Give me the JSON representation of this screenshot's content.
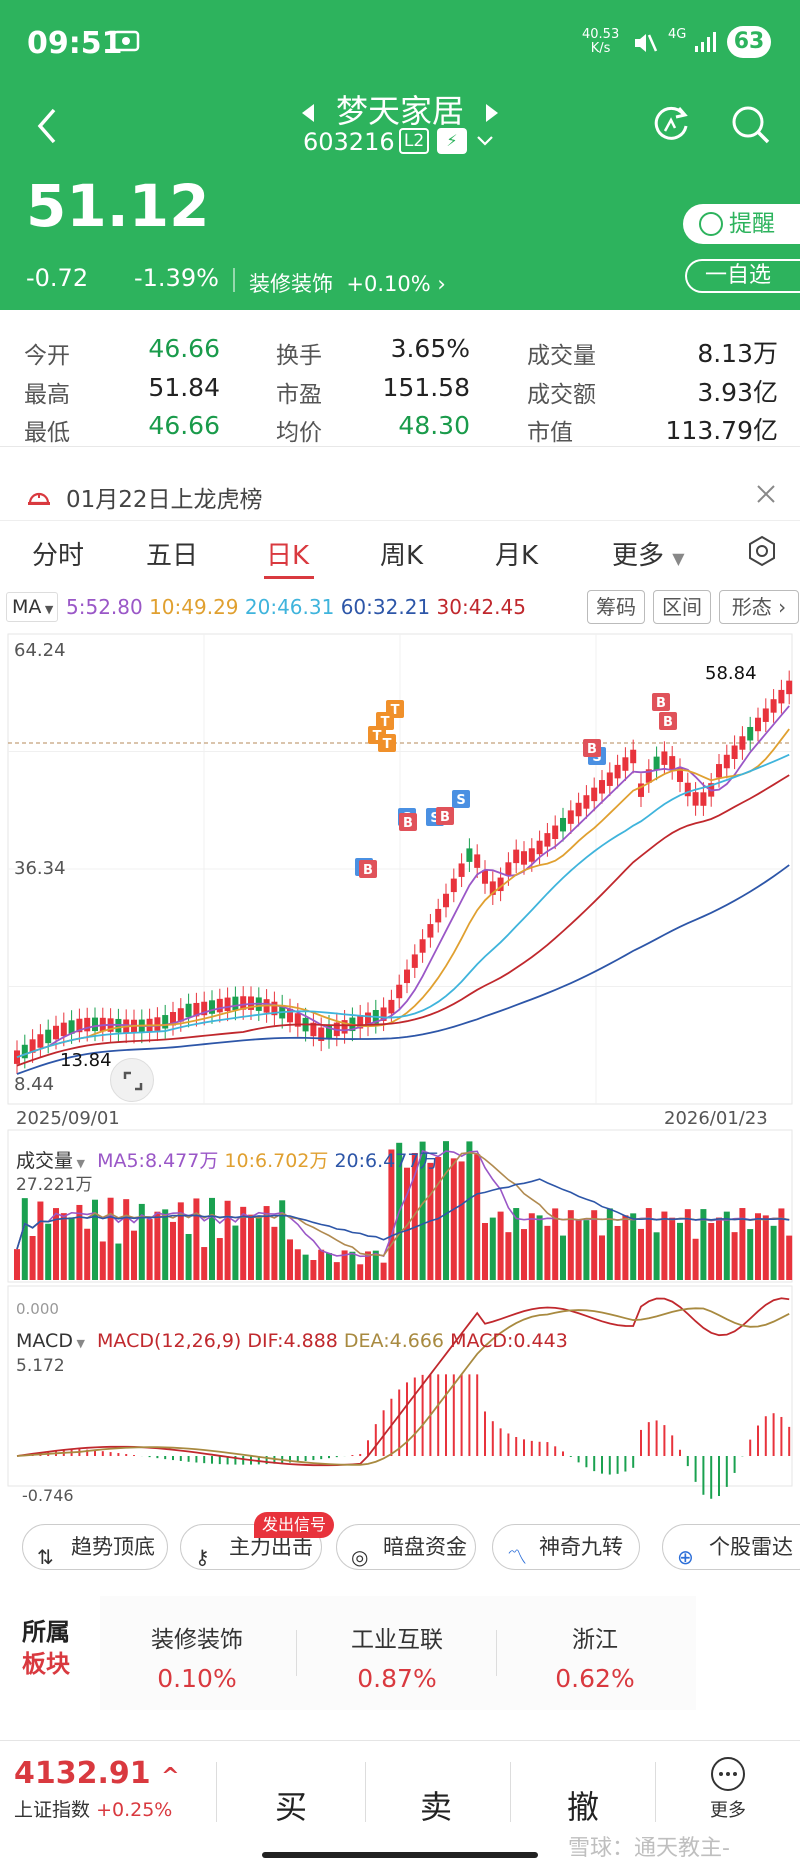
{
  "status": {
    "time": "09:51",
    "net_speed": "40.53",
    "net_unit": "K/s",
    "net_type": "4G",
    "battery": "63"
  },
  "stock": {
    "name": "梦天家居",
    "code": "603216",
    "level": "L2",
    "price": "51.12",
    "change": "-0.72",
    "change_pct": "-1.39%",
    "sector": "装修装饰",
    "sector_pct": "+0.10%",
    "remind_label": "提醒",
    "add_label": "一自选"
  },
  "quotes": [
    {
      "label": "今开",
      "value": "46.66"
    },
    {
      "label": "换手",
      "value": "3.65%"
    },
    {
      "label": "成交量",
      "value": "8.13万"
    },
    {
      "label": "最高",
      "value": "51.84"
    },
    {
      "label": "市盈",
      "value": "151.58"
    },
    {
      "label": "成交额",
      "value": "3.93亿"
    },
    {
      "label": "最低",
      "value": "46.66"
    },
    {
      "label": "均价",
      "value": "48.30"
    },
    {
      "label": "市值",
      "value": "113.79亿"
    }
  ],
  "notice": "01月22日上龙虎榜",
  "tabs": [
    "分时",
    "五日",
    "日K",
    "周K",
    "月K",
    "更多"
  ],
  "ma_legend": {
    "selector": "MA",
    "ma5": "5:52.80",
    "ma10": "10:49.29",
    "ma20": "20:46.31",
    "ma60": "60:32.21",
    "ma30": "30:42.45"
  },
  "tool_buttons": [
    "筹码",
    "区间",
    "形态"
  ],
  "colors": {
    "up": "#e8333c",
    "down": "#1aa150",
    "ma5": "#9a57c7",
    "ma10": "#e0a030",
    "ma20": "#3fb4dc",
    "ma30": "#c0282d",
    "ma60": "#2d56a8",
    "header": "#2db35d"
  },
  "chart_data": {
    "type": "candlestick",
    "y_top": "64.24",
    "y_mid": "36.34",
    "y_bottom": "8.44",
    "high_label": "58.84",
    "low_label": "13.84",
    "x_start": "2025/09/01",
    "x_end": "2026/01/23",
    "signals": {
      "buy": "B",
      "sell": "S",
      "top": "T"
    }
  },
  "volume": {
    "label": "成交量",
    "ma5": "MA5:8.477万",
    "ma10": "10:6.702万",
    "ma20": "20:6.477万",
    "max": "27.221万",
    "min": "0.000"
  },
  "macd": {
    "label": "MACD",
    "params": "MACD(12,26,9)",
    "dif": "DIF:4.888",
    "dea": "DEA:4.666",
    "macd": "MACD:0.443",
    "max": "5.172",
    "min": "-0.746"
  },
  "features": [
    "趋势顶底",
    "主力出击",
    "暗盘资金",
    "神奇九转",
    "个股雷达"
  ],
  "feature_badge": "发出信号",
  "sectors_title": [
    "所属",
    "板块"
  ],
  "sectors": [
    {
      "name": "装修装饰",
      "pct": "0.10%"
    },
    {
      "name": "工业互联",
      "pct": "0.87%"
    },
    {
      "name": "浙江",
      "pct": "0.62%"
    }
  ],
  "index": {
    "value": "4132.91",
    "name": "上证指数",
    "change": "+0.25%"
  },
  "actions": [
    "买",
    "卖",
    "撤",
    "更多"
  ],
  "watermark": "雪球：通天教主-"
}
